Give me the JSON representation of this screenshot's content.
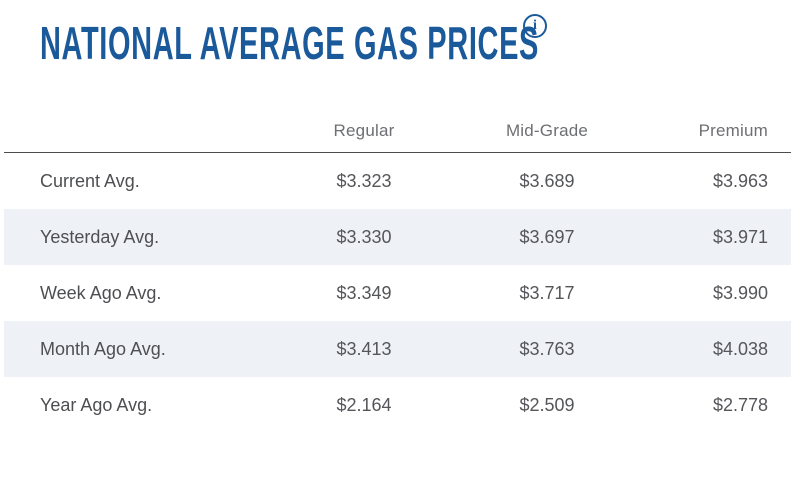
{
  "header": {
    "title": "NATIONAL AVERAGE GAS PRICES",
    "info_glyph": "i"
  },
  "table": {
    "columns": [
      "Regular",
      "Mid-Grade",
      "Premium"
    ],
    "rows": [
      {
        "label": "Current Avg.",
        "values": [
          "$3.323",
          "$3.689",
          "$3.963"
        ]
      },
      {
        "label": "Yesterday Avg.",
        "values": [
          "$3.330",
          "$3.697",
          "$3.971"
        ]
      },
      {
        "label": "Week Ago Avg.",
        "values": [
          "$3.349",
          "$3.717",
          "$3.990"
        ]
      },
      {
        "label": "Month Ago Avg.",
        "values": [
          "$3.413",
          "$3.763",
          "$4.038"
        ]
      },
      {
        "label": "Year Ago Avg.",
        "values": [
          "$2.164",
          "$2.509",
          "$2.778"
        ]
      }
    ]
  },
  "colors": {
    "title_blue": "#1b5a9a",
    "stripe": "#eef2f7",
    "divider": "#4c4d4f",
    "header_text": "#6e6f72",
    "label_text": "#4e4f52",
    "value_text": "#55565a"
  }
}
